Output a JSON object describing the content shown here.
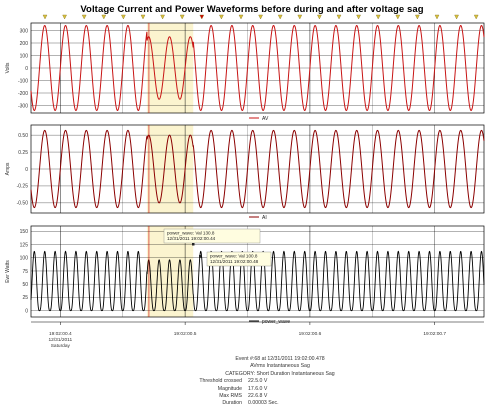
{
  "chart_data": {
    "type": "line",
    "title": "Voltage Current and Power Waveforms before during and after voltage sag",
    "x_tick_labels": [
      {
        "t": 0.4,
        "lines": [
          "19:02:00.4",
          "12/31/2011",
          "Saturday"
        ]
      },
      {
        "t": 0.5,
        "lines": [
          "19:02:00.5"
        ]
      },
      {
        "t": 0.6,
        "lines": [
          "19:02:00.6"
        ]
      },
      {
        "t": 0.7,
        "lines": [
          "19:02:00.7"
        ]
      }
    ],
    "xlim": [
      0.3765,
      0.7395
    ],
    "cycles_per_second": 60,
    "sag_window": [
      0.4694,
      0.5065
    ],
    "panels": [
      {
        "ylabel": "Volts",
        "ylim": [
          -360,
          360
        ],
        "yticks": [
          -300,
          -200,
          -100,
          0,
          100,
          200,
          300
        ],
        "color": "#c81414",
        "series": [
          {
            "name": "AV",
            "nominal_amplitude": 340,
            "sag_amplitude": 250
          }
        ]
      },
      {
        "ylabel": "Amps",
        "ylim": [
          -0.65,
          0.65
        ],
        "yticks": [
          -0.5,
          -0.25,
          0,
          0.25,
          0.5
        ],
        "ytick_labels": [
          "-0.50",
          "-0.25",
          "0",
          "0.25",
          "0.50"
        ],
        "color": "#8b0000",
        "series": [
          {
            "name": "AI",
            "nominal_amplitude": 0.57,
            "sag_amplitude": 0.5
          }
        ]
      },
      {
        "ylabel": "Ewr Watts",
        "ylim": [
          -12,
          160
        ],
        "yticks": [
          0,
          25,
          50,
          75,
          100,
          125,
          150
        ],
        "color": "#000000",
        "series": [
          {
            "name": "power_wave",
            "nominal_amplitude": 140,
            "sag_amplitude": 120
          }
        ]
      }
    ],
    "annotations": [
      {
        "lines": [
          "power_wave: Val 130.8",
          "12/31/2011 19:02:00.44"
        ]
      },
      {
        "lines": [
          "power_wave: Val 100.8",
          "12/31/2011 19:02:00.48"
        ]
      }
    ]
  },
  "event": {
    "line1": "Event #:68 at 12/31/2011 19:02:00.478",
    "line2": "AVrms Instantaneous Sag",
    "line3": "CATEGORY: Short Duration Instantaneous Sag",
    "details": [
      {
        "k": "Threshold crossed",
        "v": "22.5.0 V"
      },
      {
        "k": "Magnitude",
        "v": "17.6.0 V"
      },
      {
        "k": "Max RMS",
        "v": "22.6.8 V"
      },
      {
        "k": "Duration",
        "v": "0.00003 Sec."
      }
    ]
  }
}
